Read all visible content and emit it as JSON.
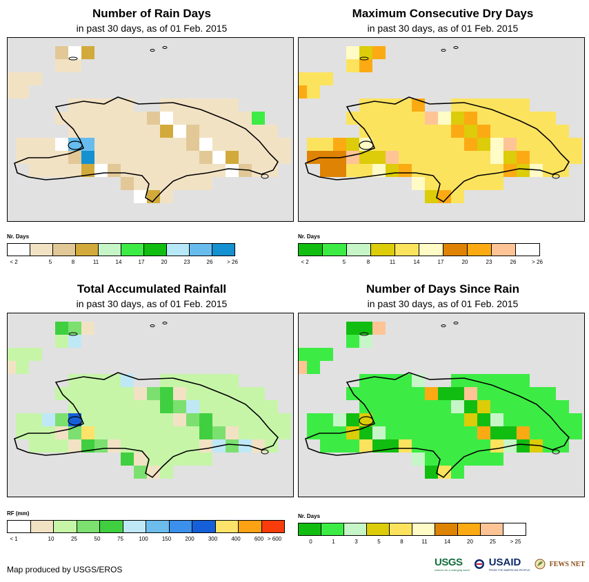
{
  "region": "Hispaniola",
  "panels": [
    {
      "id": "rain-days",
      "title": "Number of Rain Days",
      "subtitle": "in past 30 days, as of 01 Feb. 2015",
      "legend_title": "Nr. Days",
      "legend_colors": [
        "#ffffff",
        "#f2e2c4",
        "#e1c896",
        "#d2aa3c",
        "#c6f5c8",
        "#3cec44",
        "#12bd12",
        "#b7e8f7",
        "#68bced",
        "#1590d0"
      ],
      "legend_labels": [
        "< 2",
        "5",
        "8",
        "11",
        "14",
        "17",
        "20",
        "23",
        "26",
        "> 26"
      ],
      "dominant_class": "5 - 8 days",
      "default_fill": "#f2e2c4"
    },
    {
      "id": "max-dry-days",
      "title": "Maximum Consecutive Dry Days",
      "subtitle": "in past 30 days, as of 01 Feb. 2015",
      "legend_title": "Nr. Days",
      "legend_colors": [
        "#12bd12",
        "#3cec44",
        "#c6f5c8",
        "#dccc09",
        "#fce35e",
        "#fefbc6",
        "#de8304",
        "#fcaa14",
        "#fec496",
        "#ffffff"
      ],
      "legend_labels": [
        "< 2",
        "5",
        "8",
        "11",
        "14",
        "17",
        "20",
        "23",
        "26",
        "> 26"
      ],
      "dominant_class": "11 - 17 days",
      "default_fill": "#fce35e"
    },
    {
      "id": "total-rainfall",
      "title": "Total Accumulated Rainfall",
      "subtitle": "in past 30 days, as of 01 Feb. 2015",
      "legend_title": "RF (mm)",
      "legend_colors": [
        "#ffffff",
        "#f2e2c4",
        "#c6f5a8",
        "#7ce070",
        "#40cf40",
        "#bfe8f7",
        "#6cbcec",
        "#3a90ea",
        "#1560d8",
        "#fde36a",
        "#fca214",
        "#f83c0c"
      ],
      "legend_labels": [
        "< 1",
        "10",
        "25",
        "50",
        "75",
        "100",
        "150",
        "200",
        "300",
        "400",
        "600",
        "> 600"
      ],
      "dominant_class": "25 - 50 mm",
      "default_fill": "#c6f5a8"
    },
    {
      "id": "days-since-rain",
      "title": "Number of Days Since Rain",
      "subtitle": "in past 30 days, as of 01 Feb. 2015",
      "legend_title": "Nr. Days",
      "legend_colors": [
        "#12bd12",
        "#3cec44",
        "#c6f5c8",
        "#dccc09",
        "#fce35e",
        "#fefbc6",
        "#de8304",
        "#fcaa14",
        "#fec496",
        "#ffffff"
      ],
      "legend_labels": [
        "0",
        "1",
        "3",
        "5",
        "8",
        "11",
        "14",
        "20",
        "25",
        "> 25"
      ],
      "dominant_class": "0 - 3 days",
      "default_fill": "#3cec44"
    }
  ],
  "credit": "Map produced by USGS/EROS",
  "logos": {
    "usgs": "USGS",
    "usgs_tagline": "science for a changing world",
    "usaid": "USAID",
    "usaid_tagline": "FROM THE AMERICAN PEOPLE",
    "fews": "FEWS NET"
  }
}
